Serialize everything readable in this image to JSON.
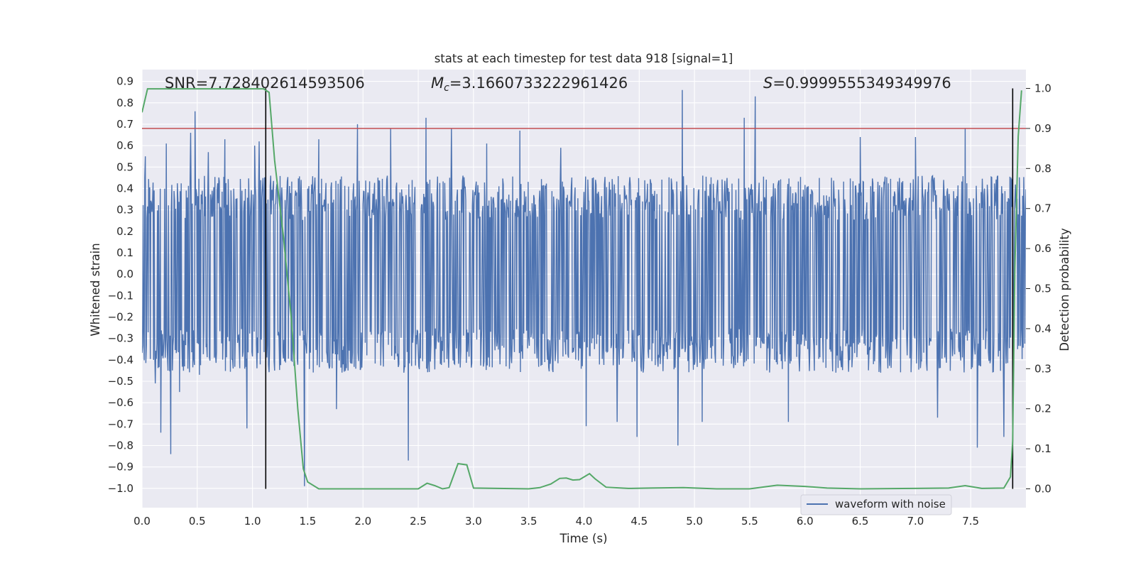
{
  "chart_data": {
    "type": "line",
    "title": "stats at each timestep for test data 918 [signal=1]",
    "xlabel": "Time (s)",
    "ylabel": "Whitened strain",
    "y2label": "Detection probability",
    "xlim": [
      0.0,
      8.0
    ],
    "ylim": [
      -1.09,
      0.955
    ],
    "y2lim": [
      -0.047,
      1.047
    ],
    "x_ticks": [
      "0.0",
      "0.5",
      "1.0",
      "1.5",
      "2.0",
      "2.5",
      "3.0",
      "3.5",
      "4.0",
      "4.5",
      "5.0",
      "5.5",
      "6.0",
      "6.5",
      "7.0",
      "7.5"
    ],
    "y_ticks": [
      "0.9",
      "0.8",
      "0.7",
      "0.6",
      "0.5",
      "0.4",
      "0.3",
      "0.2",
      "0.1",
      "0.0",
      "−0.1",
      "−0.2",
      "−0.3",
      "−0.4",
      "−0.5",
      "−0.6",
      "−0.7",
      "−0.8",
      "−0.9",
      "−1.0"
    ],
    "y2_ticks": [
      "1.0",
      "0.9",
      "0.8",
      "0.7",
      "0.6",
      "0.5",
      "0.4",
      "0.3",
      "0.2",
      "0.1",
      "0.0"
    ],
    "grid": true,
    "legend_placement": "lower-right",
    "annotations": {
      "snr": "SNR=7.728402614593506",
      "mc_symbol": "M",
      "mc_sub": "c",
      "mc_value": "=3.1660733222961426",
      "s_symbol": "S",
      "s_value": "=0.9999555349349976"
    },
    "threshold_probability": 0.9,
    "vertical_lines_x": [
      1.12,
      7.88
    ],
    "series": [
      {
        "name": "waveform with noise",
        "color": "#4c72b0",
        "axis": "left",
        "envelope": {
          "typical_upper": 0.46,
          "typical_lower": -0.46,
          "spikes": [
            {
              "x": 0.03,
              "y": 0.55
            },
            {
              "x": 0.12,
              "y": -0.51
            },
            {
              "x": 0.17,
              "y": -0.74
            },
            {
              "x": 0.22,
              "y": 0.61
            },
            {
              "x": 0.26,
              "y": -0.84
            },
            {
              "x": 0.34,
              "y": -0.55
            },
            {
              "x": 0.44,
              "y": 0.66
            },
            {
              "x": 0.48,
              "y": 0.76
            },
            {
              "x": 0.52,
              "y": -0.47
            },
            {
              "x": 0.6,
              "y": 0.57
            },
            {
              "x": 0.75,
              "y": 0.63
            },
            {
              "x": 0.95,
              "y": -0.72
            },
            {
              "x": 1.02,
              "y": 0.6
            },
            {
              "x": 1.06,
              "y": 0.62
            },
            {
              "x": 1.47,
              "y": -0.99
            },
            {
              "x": 1.6,
              "y": 0.63
            },
            {
              "x": 1.76,
              "y": -0.63
            },
            {
              "x": 1.95,
              "y": 0.7
            },
            {
              "x": 2.25,
              "y": 0.68
            },
            {
              "x": 2.41,
              "y": -0.87
            },
            {
              "x": 2.57,
              "y": 0.73
            },
            {
              "x": 2.8,
              "y": 0.68
            },
            {
              "x": 3.12,
              "y": 0.61
            },
            {
              "x": 3.42,
              "y": 0.67
            },
            {
              "x": 3.79,
              "y": 0.59
            },
            {
              "x": 4.02,
              "y": -0.71
            },
            {
              "x": 4.3,
              "y": -0.69
            },
            {
              "x": 4.48,
              "y": -0.76
            },
            {
              "x": 4.85,
              "y": -0.8
            },
            {
              "x": 4.89,
              "y": 0.86
            },
            {
              "x": 5.07,
              "y": -0.69
            },
            {
              "x": 5.45,
              "y": 0.73
            },
            {
              "x": 5.55,
              "y": 0.83
            },
            {
              "x": 5.85,
              "y": -0.69
            },
            {
              "x": 6.5,
              "y": 0.64
            },
            {
              "x": 7.0,
              "y": 0.64
            },
            {
              "x": 7.2,
              "y": -0.67
            },
            {
              "x": 7.45,
              "y": 0.68
            },
            {
              "x": 7.56,
              "y": -0.81
            },
            {
              "x": 7.8,
              "y": -0.76
            }
          ]
        }
      },
      {
        "name": "",
        "color": "#55a868",
        "axis": "right",
        "x": [
          0.0,
          0.05,
          0.1,
          0.5,
          1.0,
          1.05,
          1.1,
          1.15,
          1.2,
          1.28,
          1.35,
          1.41,
          1.46,
          1.5,
          1.6,
          2.0,
          2.4,
          2.5,
          2.58,
          2.65,
          2.72,
          2.78,
          2.86,
          2.94,
          3.0,
          3.5,
          3.6,
          3.7,
          3.78,
          3.84,
          3.9,
          3.96,
          4.05,
          4.1,
          4.2,
          4.4,
          4.6,
          4.9,
          5.2,
          5.5,
          5.75,
          6.0,
          6.2,
          6.5,
          7.0,
          7.3,
          7.45,
          7.6,
          7.8,
          7.86,
          7.88,
          7.9,
          7.93,
          7.96
        ],
        "values": [
          0.94,
          0.999,
          0.999,
          0.999,
          0.999,
          0.999,
          0.999,
          0.99,
          0.82,
          0.63,
          0.43,
          0.2,
          0.05,
          0.017,
          0.0,
          0.0,
          0.0,
          0.0,
          0.014,
          0.008,
          0.0,
          0.003,
          0.063,
          0.06,
          0.002,
          0.0,
          0.003,
          0.012,
          0.026,
          0.027,
          0.022,
          0.023,
          0.038,
          0.025,
          0.004,
          0.001,
          0.002,
          0.003,
          0.0,
          0.0,
          0.009,
          0.006,
          0.002,
          0.0,
          0.001,
          0.002,
          0.008,
          0.001,
          0.002,
          0.03,
          0.12,
          0.55,
          0.88,
          0.995
        ]
      }
    ]
  }
}
